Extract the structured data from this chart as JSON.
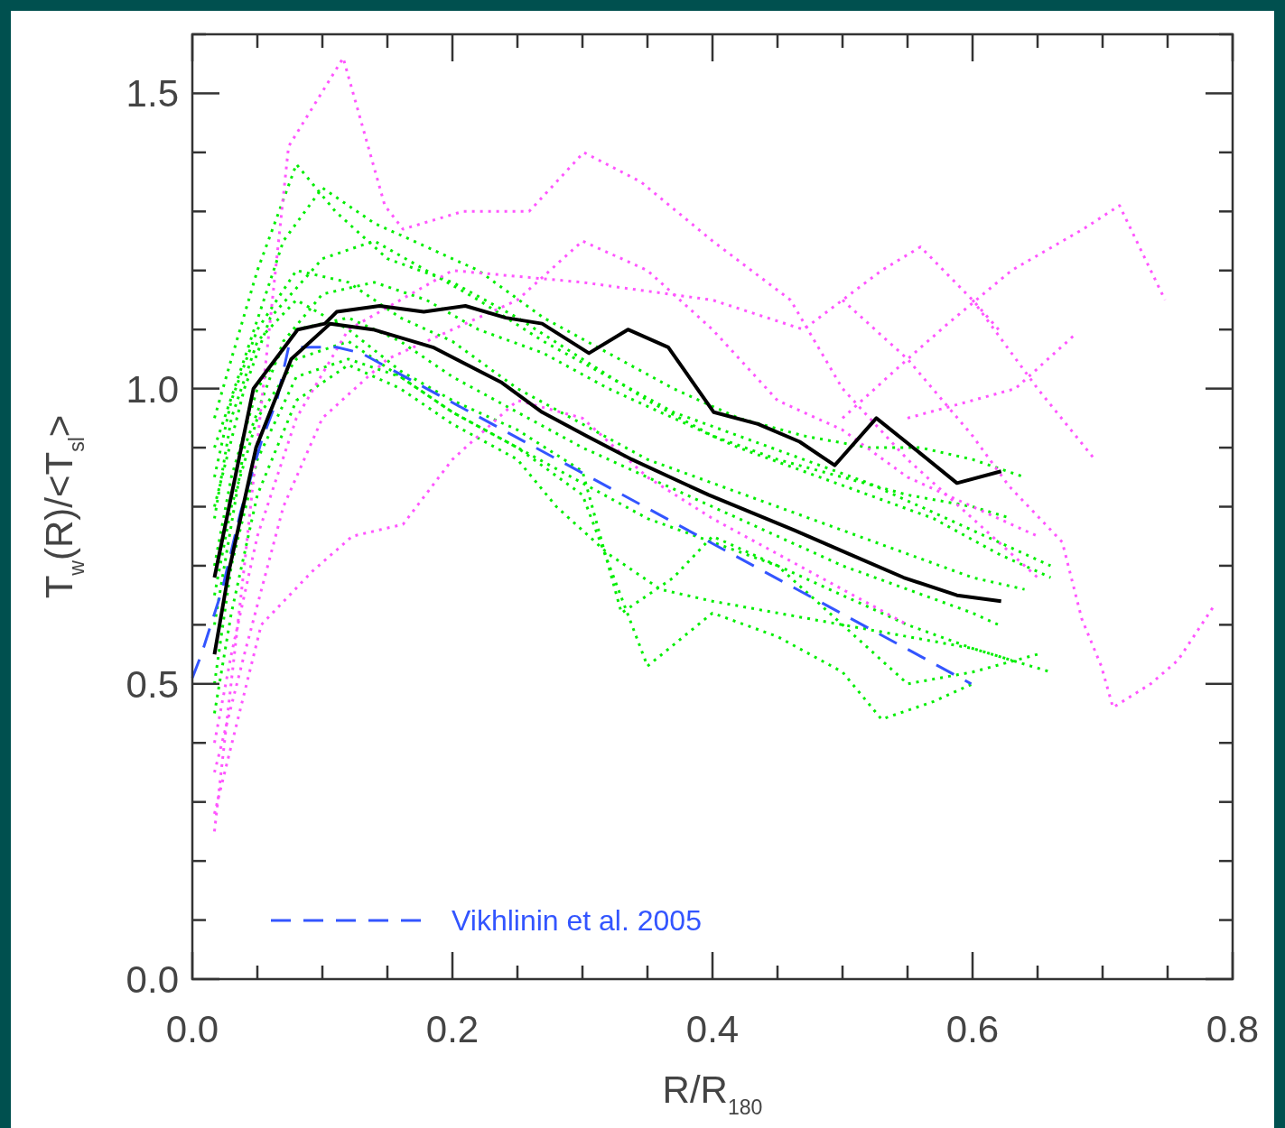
{
  "chart_data": {
    "type": "line",
    "xlabel": "R/R$_{180}$",
    "ylabel": "T$_{w}$(R)/<T$_{sl}$>",
    "xlim": [
      0,
      0.8
    ],
    "ylim": [
      0,
      1.6
    ],
    "xticks": [
      {
        "value": 0,
        "label": "0.0"
      },
      {
        "value": 0.05,
        "label": null
      },
      {
        "value": 0.1,
        "label": null
      },
      {
        "value": 0.15,
        "label": null
      },
      {
        "value": 0.2,
        "label": "0.2"
      },
      {
        "value": 0.25,
        "label": null
      },
      {
        "value": 0.3,
        "label": null
      },
      {
        "value": 0.35,
        "label": null
      },
      {
        "value": 0.4,
        "label": "0.4"
      },
      {
        "value": 0.45,
        "label": null
      },
      {
        "value": 0.5,
        "label": null
      },
      {
        "value": 0.55,
        "label": null
      },
      {
        "value": 0.6,
        "label": "0.6"
      },
      {
        "value": 0.65,
        "label": null
      },
      {
        "value": 0.7,
        "label": null
      },
      {
        "value": 0.75,
        "label": null
      },
      {
        "value": 0.8,
        "label": "0.8"
      }
    ],
    "yticks": [
      {
        "value": 0,
        "label": "0.0"
      },
      {
        "value": 0.1,
        "label": null
      },
      {
        "value": 0.2,
        "label": null
      },
      {
        "value": 0.3,
        "label": null
      },
      {
        "value": 0.4,
        "label": null
      },
      {
        "value": 0.5,
        "label": "0.5"
      },
      {
        "value": 0.6,
        "label": null
      },
      {
        "value": 0.7,
        "label": null
      },
      {
        "value": 0.8,
        "label": null
      },
      {
        "value": 0.9,
        "label": null
      },
      {
        "value": 1,
        "label": "1.0"
      },
      {
        "value": 1.1,
        "label": null
      },
      {
        "value": 1.2,
        "label": null
      },
      {
        "value": 1.3,
        "label": null
      },
      {
        "value": 1.4,
        "label": null
      },
      {
        "value": 1.5,
        "label": "1.5"
      },
      {
        "value": 1.6,
        "label": null
      }
    ],
    "legend": "bottom left",
    "series": [
      {
        "color": "#00ee00",
        "line_style": "dotted",
        "x": [
          0.017,
          0.03,
          0.05,
          0.08,
          0.11,
          0.15,
          0.2,
          0.25,
          0.3,
          0.35,
          0.4,
          0.45,
          0.5,
          0.55,
          0.6,
          0.63
        ],
        "values": [
          0.95,
          1.05,
          1.2,
          1.38,
          1.3,
          1.22,
          1.18,
          1.12,
          1.05,
          0.98,
          0.92,
          0.88,
          0.85,
          0.82,
          0.8,
          0.78
        ]
      },
      {
        "color": "#00ee00",
        "line_style": "dotted",
        "x": [
          0.017,
          0.03,
          0.05,
          0.08,
          0.12,
          0.16,
          0.2,
          0.25,
          0.3,
          0.35,
          0.4,
          0.45,
          0.5,
          0.55,
          0.6,
          0.64
        ],
        "values": [
          0.85,
          0.98,
          1.1,
          1.2,
          1.18,
          1.12,
          1.08,
          1.0,
          0.94,
          0.88,
          0.84,
          0.8,
          0.76,
          0.72,
          0.68,
          0.66
        ]
      },
      {
        "color": "#00ee00",
        "line_style": "dotted",
        "x": [
          0.017,
          0.03,
          0.05,
          0.08,
          0.12,
          0.16,
          0.2,
          0.25,
          0.3,
          0.35,
          0.4,
          0.45,
          0.5,
          0.55,
          0.6,
          0.62
        ],
        "values": [
          0.7,
          0.85,
          1.0,
          1.1,
          1.12,
          1.08,
          1.02,
          0.96,
          0.9,
          0.85,
          0.8,
          0.75,
          0.7,
          0.66,
          0.62,
          0.6
        ]
      },
      {
        "color": "#00ee00",
        "line_style": "dotted",
        "x": [
          0.017,
          0.03,
          0.05,
          0.08,
          0.12,
          0.16,
          0.2,
          0.25,
          0.3,
          0.35,
          0.4,
          0.45,
          0.5,
          0.55,
          0.6,
          0.63
        ],
        "values": [
          0.5,
          0.7,
          0.88,
          1.02,
          1.05,
          1.02,
          0.96,
          0.9,
          0.84,
          0.78,
          0.74,
          0.7,
          0.65,
          0.6,
          0.56,
          0.54
        ]
      },
      {
        "color": "#00ee00",
        "line_style": "dotted",
        "x": [
          0.017,
          0.04,
          0.07,
          0.1,
          0.14,
          0.18,
          0.22,
          0.27,
          0.32,
          0.37,
          0.42,
          0.47,
          0.52,
          0.57,
          0.62,
          0.66
        ],
        "values": [
          0.6,
          0.9,
          1.08,
          1.16,
          1.18,
          1.15,
          1.1,
          1.06,
          1.0,
          0.95,
          0.9,
          0.86,
          0.82,
          0.78,
          0.72,
          0.68
        ]
      },
      {
        "color": "#00ee00",
        "line_style": "dotted",
        "x": [
          0.017,
          0.03,
          0.05,
          0.08,
          0.12,
          0.16,
          0.2,
          0.25,
          0.3,
          0.33,
          0.37,
          0.4,
          0.45,
          0.5,
          0.55,
          0.6,
          0.65
        ],
        "values": [
          0.78,
          0.95,
          1.08,
          1.15,
          1.1,
          1.03,
          0.98,
          0.93,
          0.86,
          0.62,
          0.68,
          0.75,
          0.7,
          0.6,
          0.5,
          0.52,
          0.55
        ]
      },
      {
        "color": "#00ee00",
        "line_style": "dotted",
        "x": [
          0.017,
          0.04,
          0.07,
          0.1,
          0.14,
          0.18,
          0.22,
          0.27,
          0.32,
          0.37,
          0.42,
          0.47,
          0.52,
          0.56,
          0.6,
          0.64
        ],
        "values": [
          0.9,
          1.05,
          1.25,
          1.34,
          1.28,
          1.24,
          1.2,
          1.12,
          1.06,
          1.0,
          0.95,
          0.92,
          0.9,
          0.9,
          0.88,
          0.85
        ]
      },
      {
        "color": "#00ee00",
        "line_style": "dotted",
        "x": [
          0.017,
          0.03,
          0.05,
          0.08,
          0.12,
          0.16,
          0.2,
          0.25,
          0.3,
          0.35,
          0.4,
          0.45,
          0.5,
          0.53,
          0.57,
          0.6
        ],
        "values": [
          0.65,
          0.8,
          0.95,
          1.05,
          1.08,
          1.02,
          0.96,
          0.9,
          0.82,
          0.53,
          0.62,
          0.58,
          0.52,
          0.44,
          0.47,
          0.5
        ]
      },
      {
        "color": "#00ee00",
        "line_style": "dotted",
        "x": [
          0.017,
          0.03,
          0.05,
          0.08,
          0.12,
          0.16,
          0.2,
          0.25,
          0.28,
          0.32,
          0.36,
          0.4,
          0.45,
          0.5,
          0.55,
          0.6,
          0.66
        ],
        "values": [
          0.45,
          0.62,
          0.82,
          0.98,
          1.04,
          1.0,
          0.94,
          0.88,
          0.8,
          0.72,
          0.66,
          0.64,
          0.62,
          0.6,
          0.58,
          0.56,
          0.52
        ]
      },
      {
        "color": "#00ee00",
        "line_style": "dotted",
        "x": [
          0.017,
          0.04,
          0.06,
          0.1,
          0.14,
          0.18,
          0.22,
          0.27,
          0.32,
          0.37,
          0.42,
          0.47,
          0.52,
          0.56,
          0.6,
          0.66
        ],
        "values": [
          0.8,
          1.0,
          1.12,
          1.22,
          1.25,
          1.2,
          1.15,
          1.08,
          1.02,
          0.96,
          0.92,
          0.88,
          0.84,
          0.8,
          0.76,
          0.7
        ]
      },
      {
        "color": "#ff55ff",
        "line_style": "dotted",
        "x": [
          0.017,
          0.04,
          0.074,
          0.116,
          0.148,
          0.162,
          0.208,
          0.259,
          0.301,
          0.345,
          0.4,
          0.46,
          0.5,
          0.55,
          0.6,
          0.65
        ],
        "values": [
          0.25,
          0.7,
          1.41,
          1.56,
          1.31,
          1.27,
          1.3,
          1.3,
          1.4,
          1.35,
          1.25,
          1.15,
          1.0,
          0.88,
          0.78,
          0.68
        ]
      },
      {
        "color": "#ff55ff",
        "line_style": "dotted",
        "x": [
          0.017,
          0.053,
          0.092,
          0.123,
          0.162,
          0.2,
          0.25,
          0.3,
          0.35,
          0.4,
          0.45,
          0.5,
          0.55
        ],
        "values": [
          0.28,
          0.6,
          0.69,
          0.75,
          0.77,
          0.88,
          0.98,
          0.95,
          0.85,
          0.78,
          0.72,
          0.66,
          0.6
        ]
      },
      {
        "color": "#ff55ff",
        "line_style": "dotted",
        "x": [
          0.5,
          0.55,
          0.6,
          0.628,
          0.669,
          0.684,
          0.699,
          0.708,
          0.737,
          0.758,
          0.785
        ],
        "values": [
          1.15,
          1.05,
          0.92,
          0.835,
          0.74,
          0.61,
          0.53,
          0.46,
          0.5,
          0.54,
          0.63
        ]
      },
      {
        "color": "#ff55ff",
        "line_style": "dotted",
        "x": [
          0.5,
          0.55,
          0.581,
          0.63,
          0.685,
          0.713,
          0.748
        ],
        "values": [
          0.95,
          1.05,
          1.11,
          1.2,
          1.27,
          1.31,
          1.15
        ]
      },
      {
        "color": "#ff55ff",
        "line_style": "dotted",
        "x": [
          0.55,
          0.6,
          0.633,
          0.678
        ],
        "values": [
          0.95,
          0.98,
          1.0,
          1.09
        ]
      },
      {
        "color": "#ff55ff",
        "line_style": "dotted",
        "x": [
          0.6,
          0.65,
          0.694
        ],
        "values": [
          1.15,
          1.0,
          0.88
        ]
      },
      {
        "color": "#ff55ff",
        "line_style": "dotted",
        "x": [
          0.017,
          0.03,
          0.05,
          0.08,
          0.12,
          0.2,
          0.3,
          0.4,
          0.47,
          0.53,
          0.56,
          0.6,
          0.62
        ],
        "values": [
          0.4,
          0.55,
          0.75,
          0.95,
          1.1,
          1.2,
          1.18,
          1.15,
          1.1,
          1.2,
          1.24,
          1.15,
          1.1
        ]
      },
      {
        "color": "#ff55ff",
        "line_style": "dotted",
        "x": [
          0.017,
          0.04,
          0.07,
          0.1,
          0.15,
          0.2,
          0.25,
          0.3,
          0.35,
          0.4,
          0.45,
          0.5,
          0.55,
          0.6,
          0.65
        ],
        "values": [
          0.35,
          0.55,
          0.8,
          0.95,
          1.05,
          1.1,
          1.15,
          1.25,
          1.2,
          1.1,
          0.98,
          0.93,
          0.85,
          0.8,
          0.75
        ]
      },
      {
        "name": "Vikhlinin et al. 2005",
        "color": "#3355ff",
        "line_style": "dashed",
        "x": [
          0,
          0.007,
          0.023,
          0.037,
          0.053,
          0.065,
          0.074,
          0.111,
          0.13,
          0.599
        ],
        "values": [
          0.51,
          0.55,
          0.66,
          0.79,
          0.91,
          0.98,
          1.07,
          1.07,
          1.06,
          0.5
        ]
      },
      {
        "color": "#000000",
        "line_style": "solid",
        "x": [
          0.017,
          0.047,
          0.081,
          0.102,
          0.111,
          0.144,
          0.178,
          0.21,
          0.241,
          0.269,
          0.305,
          0.335,
          0.366,
          0.401,
          0.435,
          0.467,
          0.494,
          0.526,
          0.56,
          0.588,
          0.622
        ],
        "values": [
          0.68,
          1.0,
          1.1,
          1.11,
          1.13,
          1.14,
          1.13,
          1.14,
          1.12,
          1.11,
          1.06,
          1.1,
          1.07,
          0.96,
          0.94,
          0.91,
          0.87,
          0.95,
          0.89,
          0.84,
          0.86
        ]
      },
      {
        "color": "#000000",
        "line_style": "solid",
        "x": [
          0.017,
          0.028,
          0.049,
          0.076,
          0.106,
          0.139,
          0.185,
          0.238,
          0.269,
          0.303,
          0.338,
          0.397,
          0.463,
          0.505,
          0.547,
          0.588,
          0.622
        ],
        "values": [
          0.55,
          0.69,
          0.9,
          1.05,
          1.11,
          1.1,
          1.07,
          1.01,
          0.96,
          0.92,
          0.88,
          0.82,
          0.76,
          0.72,
          0.68,
          0.65,
          0.64
        ]
      }
    ]
  }
}
